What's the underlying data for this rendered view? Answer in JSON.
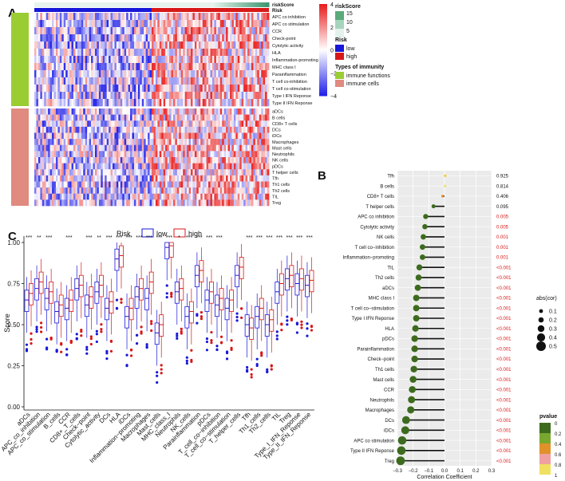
{
  "panels": {
    "a": "A",
    "b": "B",
    "c": "C"
  },
  "colors": {
    "low": "#1818d8",
    "high": "#d81818",
    "heat_low": "#2323e8",
    "heat_mid": "#ffffff",
    "heat_high": "#e82020",
    "immune_functions": "#9acd32",
    "immune_cells": "#e08a80",
    "risk_score_bar": "#5aaa7a"
  },
  "chart_data": [
    {
      "type": "heatmap",
      "panel": "A",
      "columns_low": 60,
      "columns_high": 60,
      "color_scale": {
        "min": -4,
        "max": 4,
        "ticks": [
          4,
          2,
          0,
          -2,
          -4
        ]
      },
      "immune_functions": [
        "APC co inhibition",
        "APC co stimulation",
        "CCR",
        "Check-point",
        "Cytolytic activity",
        "HLA",
        "Inflammation-promoting",
        "MHC class I",
        "Parainflammation",
        "T cell co-inhibition",
        "T cell co-stimulation",
        "Type I IFN Reponse",
        "Type II IFN Reponse"
      ],
      "immune_cells": [
        "aDCs",
        "B cells",
        "CD8+ T cells",
        "DCs",
        "iDCs",
        "Macrophages",
        "Mast cells",
        "Neutrophils",
        "NK cells",
        "pDCs",
        "T helper cells",
        "Tfh",
        "Th1 cells",
        "Th2 cells",
        "TIL",
        "Treg"
      ],
      "annotations": {
        "riskScore_label": "riskScore",
        "risk_label": "Risk"
      },
      "legend": {
        "riskScore_title": "riskScore",
        "riskScore_ticks": [
          "15",
          "10",
          "5"
        ],
        "risk_title": "Risk",
        "risk_items": [
          "low",
          "high"
        ],
        "types_title": "Types of immunity",
        "types_items": [
          "immune functions",
          "immune cells"
        ]
      }
    },
    {
      "type": "scatter",
      "panel": "B",
      "xlabel": "Correlation Coefficient",
      "xlim": [
        -0.3,
        0.3
      ],
      "xticks": [
        "-0.3",
        "-0.2",
        "-0.1",
        "0.0",
        "0.1",
        "0.2",
        "0.3"
      ],
      "categories": [
        "Tfh",
        "B cells",
        "CD8+ T cells",
        "T helper cells",
        "APC co inhibition",
        "Cytolytic activity",
        "NK cells",
        "T cell co−inhibition",
        "Inflammation−promoting",
        "TIL",
        "Th2 cells",
        "aDCs",
        "MHC class I",
        "T cell co−stimulation",
        "Type I IFN Reponse",
        "HLA",
        "pDCs",
        "Parainflammation",
        "Check−point",
        "Th1 cells",
        "Mast cells",
        "CCR",
        "Neutrophils",
        "Macrophages",
        "DCs",
        "iDCs",
        "APC co stimulation",
        "Type II IFN Reponse",
        "Treg"
      ],
      "cor": [
        0.005,
        0.004,
        -0.012,
        -0.07,
        -0.12,
        -0.125,
        -0.135,
        -0.14,
        -0.14,
        -0.16,
        -0.165,
        -0.17,
        -0.18,
        -0.18,
        -0.18,
        -0.185,
        -0.19,
        -0.19,
        -0.19,
        -0.195,
        -0.2,
        -0.205,
        -0.21,
        -0.215,
        -0.245,
        -0.25,
        -0.27,
        -0.275,
        -0.28
      ],
      "pvalue": [
        0.925,
        0.814,
        0.406,
        0.095,
        0.005,
        0.005,
        0.001,
        0.001,
        0.001,
        0.0005,
        0.0005,
        0.0005,
        0.0005,
        0.0005,
        0.0005,
        0.0005,
        0.0005,
        0.0005,
        0.0005,
        0.0005,
        0.0005,
        0.0005,
        0.0005,
        0.0005,
        0.0005,
        0.0005,
        0.0005,
        0.0005,
        0.0005
      ],
      "pvalue_labels": [
        "0.925",
        "0.814",
        "0.406",
        "0.095",
        "0.005",
        "0.005",
        "0.001",
        "0.001",
        "0.001",
        "<0.001",
        "<0.001",
        "<0.001",
        "<0.001",
        "<0.001",
        "<0.001",
        "<0.001",
        "<0.001",
        "<0.001",
        "<0.001",
        "<0.001",
        "<0.001",
        "<0.001",
        "<0.001",
        "<0.001",
        "<0.001",
        "<0.001",
        "<0.001",
        "<0.001",
        "<0.001"
      ],
      "legend_size": {
        "title": "abs(cor)",
        "items": [
          "0.1",
          "0.2",
          "0.3",
          "0.4",
          "0.5"
        ]
      },
      "legend_color": {
        "title": "pvalue",
        "items": [
          "0",
          "0.2",
          "0.4",
          "0.6",
          "0.8",
          "1"
        ]
      }
    },
    {
      "type": "boxplot",
      "panel": "C",
      "legend_title": "Risk",
      "series": [
        {
          "name": "low",
          "color": "#1818d8"
        },
        {
          "name": "high",
          "color": "#d81818"
        }
      ],
      "ylabel": "Score",
      "ylim": [
        0,
        1
      ],
      "yticks": [
        "0.00",
        "0.25",
        "0.50",
        "0.75",
        "1.00"
      ],
      "categories": [
        "aDCs",
        "APC_co_inhibition",
        "APC_co_stimulation",
        "B_cells",
        "CCR",
        "CD8+_T_cells",
        "Check−point",
        "Cytolytic_activity",
        "DCs",
        "HLA",
        "iDCs",
        "Inflammation−promoting",
        "Macrophages",
        "Mast_cells",
        "MHC_class_I",
        "Neutrophils",
        "NK_cells",
        "Parainflammation",
        "pDCs",
        "T_cell_co−inhibition",
        "T_cell_co−stimulation",
        "T_helper_cells",
        "Tfh",
        "Th1_cells",
        "Th2_cells",
        "TIL",
        "Treg",
        "Type_I_IFN_Reponse",
        "Type_II_IFN_Reponse"
      ],
      "significance": [
        "***",
        "**",
        "***",
        "",
        "***",
        "",
        "***",
        "**",
        "***",
        "***",
        "***",
        "***",
        "***",
        "***",
        "***",
        "*",
        "***",
        "***",
        "***",
        "***",
        "",
        "",
        "***",
        "***",
        "***",
        "***",
        "***",
        "***",
        "***"
      ],
      "medians_low": [
        0.65,
        0.72,
        0.66,
        0.58,
        0.6,
        0.72,
        0.62,
        0.7,
        0.6,
        0.9,
        0.55,
        0.67,
        0.66,
        0.45,
        0.97,
        0.7,
        0.55,
        0.8,
        0.65,
        0.62,
        0.6,
        0.8,
        0.5,
        0.55,
        0.5,
        0.7,
        0.78,
        0.75,
        0.74
      ],
      "medians_high": [
        0.69,
        0.76,
        0.7,
        0.62,
        0.65,
        0.74,
        0.67,
        0.74,
        0.64,
        0.92,
        0.6,
        0.72,
        0.76,
        0.5,
        0.98,
        0.72,
        0.58,
        0.83,
        0.7,
        0.66,
        0.65,
        0.85,
        0.48,
        0.6,
        0.53,
        0.75,
        0.8,
        0.78,
        0.77
      ]
    }
  ]
}
